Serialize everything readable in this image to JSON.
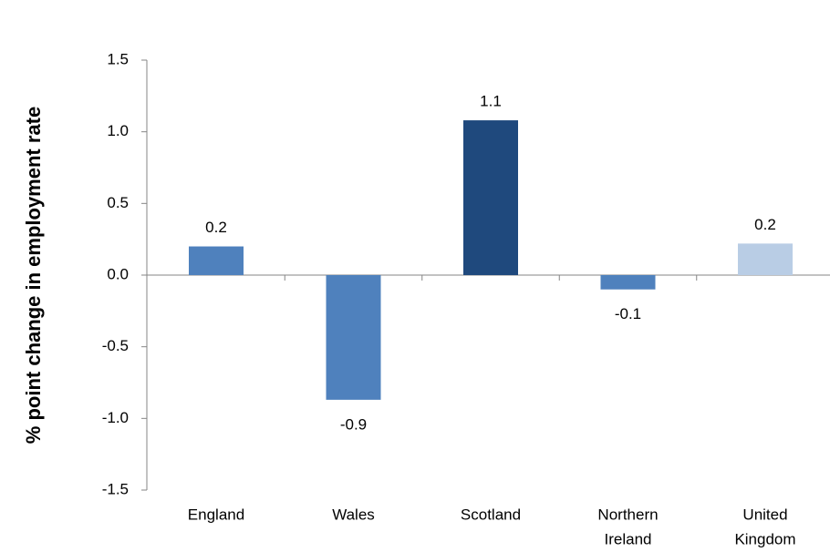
{
  "chart_data": {
    "type": "bar",
    "title": "",
    "xlabel": "",
    "ylabel": "% point change in employment rate",
    "categories": [
      [
        "England"
      ],
      [
        "Wales"
      ],
      [
        "Scotland"
      ],
      [
        "Northern",
        "Ireland"
      ],
      [
        "United",
        "Kingdom"
      ]
    ],
    "values": [
      0.2,
      -0.87,
      1.08,
      -0.1,
      0.22
    ],
    "data_labels": [
      "0.2",
      "-0.9",
      "1.1",
      "-0.1",
      "0.2"
    ],
    "colors": [
      "#4F81BD",
      "#4F81BD",
      "#1F497D",
      "#4F81BD",
      "#B9CDE5"
    ],
    "ylim": [
      -1.5,
      1.5
    ],
    "yticks": [
      1.5,
      1.0,
      0.5,
      0.0,
      -0.5,
      -1.0,
      -1.5
    ],
    "ytick_labels": [
      "1.5",
      "1.0",
      "0.5",
      "0.0",
      "-0.5",
      "-1.0",
      "-1.5"
    ],
    "grid": false,
    "legend": "none"
  }
}
